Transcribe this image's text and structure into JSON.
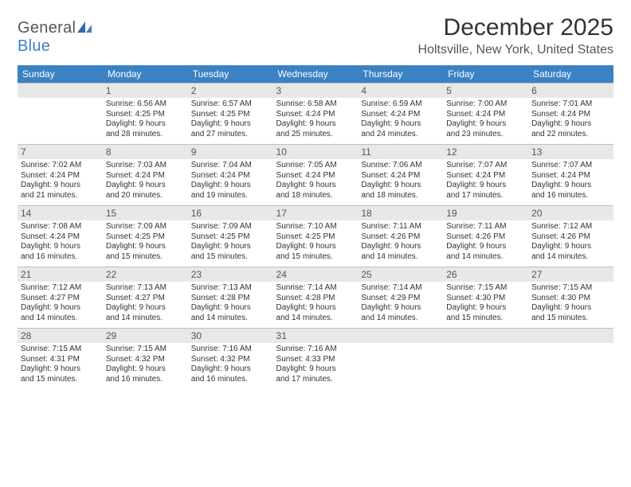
{
  "brand": {
    "general": "General",
    "blue": "Blue"
  },
  "title": "December 2025",
  "location": "Holtsville, New York, United States",
  "colors": {
    "accent": "#3b82c4",
    "header_bg": "#3b82c4",
    "daynum_bg": "#e8e8e8",
    "text": "#333333"
  },
  "day_labels": [
    "Sunday",
    "Monday",
    "Tuesday",
    "Wednesday",
    "Thursday",
    "Friday",
    "Saturday"
  ],
  "weeks": [
    [
      null,
      {
        "n": "1",
        "sr": "Sunrise: 6:56 AM",
        "ss": "Sunset: 4:25 PM",
        "d1": "Daylight: 9 hours",
        "d2": "and 28 minutes."
      },
      {
        "n": "2",
        "sr": "Sunrise: 6:57 AM",
        "ss": "Sunset: 4:25 PM",
        "d1": "Daylight: 9 hours",
        "d2": "and 27 minutes."
      },
      {
        "n": "3",
        "sr": "Sunrise: 6:58 AM",
        "ss": "Sunset: 4:24 PM",
        "d1": "Daylight: 9 hours",
        "d2": "and 25 minutes."
      },
      {
        "n": "4",
        "sr": "Sunrise: 6:59 AM",
        "ss": "Sunset: 4:24 PM",
        "d1": "Daylight: 9 hours",
        "d2": "and 24 minutes."
      },
      {
        "n": "5",
        "sr": "Sunrise: 7:00 AM",
        "ss": "Sunset: 4:24 PM",
        "d1": "Daylight: 9 hours",
        "d2": "and 23 minutes."
      },
      {
        "n": "6",
        "sr": "Sunrise: 7:01 AM",
        "ss": "Sunset: 4:24 PM",
        "d1": "Daylight: 9 hours",
        "d2": "and 22 minutes."
      }
    ],
    [
      {
        "n": "7",
        "sr": "Sunrise: 7:02 AM",
        "ss": "Sunset: 4:24 PM",
        "d1": "Daylight: 9 hours",
        "d2": "and 21 minutes."
      },
      {
        "n": "8",
        "sr": "Sunrise: 7:03 AM",
        "ss": "Sunset: 4:24 PM",
        "d1": "Daylight: 9 hours",
        "d2": "and 20 minutes."
      },
      {
        "n": "9",
        "sr": "Sunrise: 7:04 AM",
        "ss": "Sunset: 4:24 PM",
        "d1": "Daylight: 9 hours",
        "d2": "and 19 minutes."
      },
      {
        "n": "10",
        "sr": "Sunrise: 7:05 AM",
        "ss": "Sunset: 4:24 PM",
        "d1": "Daylight: 9 hours",
        "d2": "and 18 minutes."
      },
      {
        "n": "11",
        "sr": "Sunrise: 7:06 AM",
        "ss": "Sunset: 4:24 PM",
        "d1": "Daylight: 9 hours",
        "d2": "and 18 minutes."
      },
      {
        "n": "12",
        "sr": "Sunrise: 7:07 AM",
        "ss": "Sunset: 4:24 PM",
        "d1": "Daylight: 9 hours",
        "d2": "and 17 minutes."
      },
      {
        "n": "13",
        "sr": "Sunrise: 7:07 AM",
        "ss": "Sunset: 4:24 PM",
        "d1": "Daylight: 9 hours",
        "d2": "and 16 minutes."
      }
    ],
    [
      {
        "n": "14",
        "sr": "Sunrise: 7:08 AM",
        "ss": "Sunset: 4:24 PM",
        "d1": "Daylight: 9 hours",
        "d2": "and 16 minutes."
      },
      {
        "n": "15",
        "sr": "Sunrise: 7:09 AM",
        "ss": "Sunset: 4:25 PM",
        "d1": "Daylight: 9 hours",
        "d2": "and 15 minutes."
      },
      {
        "n": "16",
        "sr": "Sunrise: 7:09 AM",
        "ss": "Sunset: 4:25 PM",
        "d1": "Daylight: 9 hours",
        "d2": "and 15 minutes."
      },
      {
        "n": "17",
        "sr": "Sunrise: 7:10 AM",
        "ss": "Sunset: 4:25 PM",
        "d1": "Daylight: 9 hours",
        "d2": "and 15 minutes."
      },
      {
        "n": "18",
        "sr": "Sunrise: 7:11 AM",
        "ss": "Sunset: 4:26 PM",
        "d1": "Daylight: 9 hours",
        "d2": "and 14 minutes."
      },
      {
        "n": "19",
        "sr": "Sunrise: 7:11 AM",
        "ss": "Sunset: 4:26 PM",
        "d1": "Daylight: 9 hours",
        "d2": "and 14 minutes."
      },
      {
        "n": "20",
        "sr": "Sunrise: 7:12 AM",
        "ss": "Sunset: 4:26 PM",
        "d1": "Daylight: 9 hours",
        "d2": "and 14 minutes."
      }
    ],
    [
      {
        "n": "21",
        "sr": "Sunrise: 7:12 AM",
        "ss": "Sunset: 4:27 PM",
        "d1": "Daylight: 9 hours",
        "d2": "and 14 minutes."
      },
      {
        "n": "22",
        "sr": "Sunrise: 7:13 AM",
        "ss": "Sunset: 4:27 PM",
        "d1": "Daylight: 9 hours",
        "d2": "and 14 minutes."
      },
      {
        "n": "23",
        "sr": "Sunrise: 7:13 AM",
        "ss": "Sunset: 4:28 PM",
        "d1": "Daylight: 9 hours",
        "d2": "and 14 minutes."
      },
      {
        "n": "24",
        "sr": "Sunrise: 7:14 AM",
        "ss": "Sunset: 4:28 PM",
        "d1": "Daylight: 9 hours",
        "d2": "and 14 minutes."
      },
      {
        "n": "25",
        "sr": "Sunrise: 7:14 AM",
        "ss": "Sunset: 4:29 PM",
        "d1": "Daylight: 9 hours",
        "d2": "and 14 minutes."
      },
      {
        "n": "26",
        "sr": "Sunrise: 7:15 AM",
        "ss": "Sunset: 4:30 PM",
        "d1": "Daylight: 9 hours",
        "d2": "and 15 minutes."
      },
      {
        "n": "27",
        "sr": "Sunrise: 7:15 AM",
        "ss": "Sunset: 4:30 PM",
        "d1": "Daylight: 9 hours",
        "d2": "and 15 minutes."
      }
    ],
    [
      {
        "n": "28",
        "sr": "Sunrise: 7:15 AM",
        "ss": "Sunset: 4:31 PM",
        "d1": "Daylight: 9 hours",
        "d2": "and 15 minutes."
      },
      {
        "n": "29",
        "sr": "Sunrise: 7:15 AM",
        "ss": "Sunset: 4:32 PM",
        "d1": "Daylight: 9 hours",
        "d2": "and 16 minutes."
      },
      {
        "n": "30",
        "sr": "Sunrise: 7:16 AM",
        "ss": "Sunset: 4:32 PM",
        "d1": "Daylight: 9 hours",
        "d2": "and 16 minutes."
      },
      {
        "n": "31",
        "sr": "Sunrise: 7:16 AM",
        "ss": "Sunset: 4:33 PM",
        "d1": "Daylight: 9 hours",
        "d2": "and 17 minutes."
      },
      null,
      null,
      null
    ]
  ]
}
